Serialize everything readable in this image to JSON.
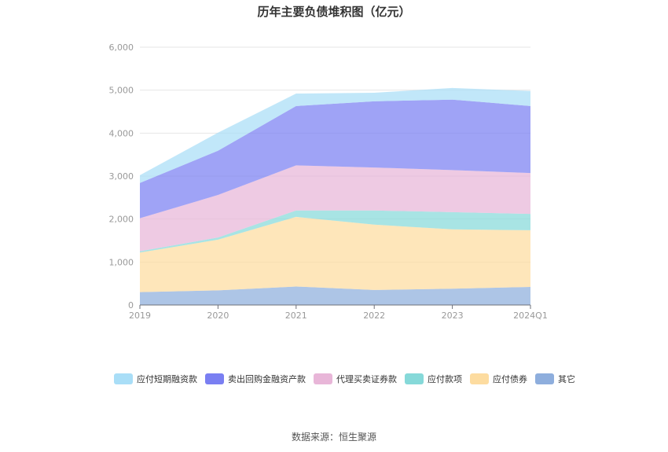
{
  "chart_data": {
    "type": "area",
    "stacked": true,
    "title": "历年主要负债堆积图（亿元）",
    "categories": [
      "2019",
      "2020",
      "2021",
      "2022",
      "2023",
      "2024Q1"
    ],
    "ylim": [
      0,
      6000
    ],
    "yticks": [
      "0",
      "1,000",
      "2,000",
      "3,000",
      "4,000",
      "5,000",
      "6,000"
    ],
    "ytick_values": [
      0,
      1000,
      2000,
      3000,
      4000,
      5000,
      6000
    ],
    "grid": true,
    "legend_position": "bottom",
    "series": [
      {
        "name": "其它",
        "values": [
          300,
          340,
          430,
          350,
          380,
          420
        ],
        "color": "#8eaedd"
      },
      {
        "name": "应付债券",
        "values": [
          920,
          1180,
          1620,
          1520,
          1380,
          1320
        ],
        "color": "#fddca0"
      },
      {
        "name": "应付款项",
        "values": [
          30,
          50,
          150,
          330,
          400,
          380
        ],
        "color": "#86d9d9"
      },
      {
        "name": "代理买卖证券款",
        "values": [
          770,
          990,
          1050,
          1000,
          980,
          950
        ],
        "color": "#e8b6d8"
      },
      {
        "name": "卖出回购金融资产款",
        "values": [
          820,
          1030,
          1380,
          1540,
          1640,
          1560
        ],
        "color": "#7a7ff2"
      },
      {
        "name": "应付短期融资款",
        "values": [
          180,
          420,
          290,
          200,
          270,
          350
        ],
        "color": "#a9def7"
      }
    ],
    "legend_order": [
      "应付短期融资款",
      "卖出回购金融资产款",
      "代理买卖证券款",
      "应付款项",
      "应付债券",
      "其它"
    ]
  },
  "source_label": "数据来源：恒生聚源"
}
